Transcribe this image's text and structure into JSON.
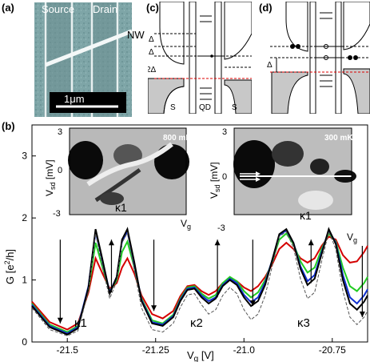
{
  "panels": {
    "a": {
      "label": "(a)",
      "source_label": "Source",
      "drain_label": "Drain",
      "nw_label": "NW",
      "scalebar_label": "1μm"
    },
    "c": {
      "label": "(c)",
      "delta_labels": [
        "Δ",
        "Δ",
        "2Δ"
      ],
      "bottom_labels": [
        "S",
        "QD",
        "S"
      ]
    },
    "d": {
      "label": "(d)",
      "delta_label": "Δ"
    },
    "b": {
      "label": "(b)",
      "inset_left": {
        "temp": "800 mK",
        "ylabel": "V",
        "ylabel_sub": "sd",
        "ylabel_unit": " [mV]",
        "yticks": [
          "3",
          "0",
          "-3"
        ],
        "kappa": "κ1"
      },
      "inset_right": {
        "temp": "300 mK",
        "ylabel": "V",
        "ylabel_sub": "sd",
        "ylabel_unit": " [mV]",
        "yticks": [
          "3",
          "0",
          "-3"
        ],
        "kappa": "κ1"
      },
      "vg_label_left": "V",
      "vg_label_right": "V",
      "vg_sub": "g",
      "kappa_labels": [
        "κ1",
        "κ2",
        "κ3"
      ]
    }
  },
  "chart_data": {
    "type": "line",
    "xlabel": "V_g [V]",
    "ylabel": "G [e²/h]",
    "xlim": [
      -21.6,
      -20.65
    ],
    "ylim": [
      0,
      3.5
    ],
    "xticks": [
      -21.5,
      -21.25,
      -21.0,
      -20.75
    ],
    "xtick_labels": [
      "-21.5",
      "-21.25",
      "-21.0",
      "-20.75"
    ],
    "yticks": [
      0,
      1,
      2,
      3
    ],
    "ytick_labels": [
      "0",
      "1",
      "2",
      "3"
    ],
    "series_colors": [
      "#d40000",
      "#22cc22",
      "#1030d0",
      "#000000",
      "#555555"
    ],
    "series": [
      {
        "x": [
          -21.6,
          -21.55,
          -21.5,
          -21.47,
          -21.44,
          -21.42,
          -21.4,
          -21.38,
          -21.36,
          -21.345,
          -21.33,
          -21.31,
          -21.29,
          -21.26,
          -21.23,
          -21.2,
          -21.18,
          -21.16,
          -21.14,
          -21.12,
          -21.1,
          -21.08,
          -21.06,
          -21.04,
          -21.02,
          -21.0,
          -20.98,
          -20.96,
          -20.94,
          -20.92,
          -20.9,
          -20.88,
          -20.86,
          -20.84,
          -20.82,
          -20.8,
          -20.78,
          -20.76,
          -20.74,
          -20.72,
          -20.7,
          -20.68,
          -20.66,
          -20.65
        ],
        "y": [
          0.65,
          0.32,
          0.2,
          0.3,
          0.8,
          1.35,
          1.1,
          0.86,
          0.95,
          1.2,
          1.35,
          1.1,
          0.75,
          0.45,
          0.38,
          0.5,
          0.74,
          0.9,
          0.92,
          0.82,
          0.76,
          0.82,
          0.95,
          1.02,
          0.98,
          0.88,
          0.82,
          0.9,
          1.05,
          1.25,
          1.5,
          1.6,
          1.5,
          1.35,
          1.28,
          1.35,
          1.55,
          1.7,
          1.65,
          1.4,
          1.28,
          1.3,
          1.45,
          1.55
        ]
      },
      {
        "x": [
          -21.6,
          -21.55,
          -21.5,
          -21.47,
          -21.44,
          -21.42,
          -21.4,
          -21.38,
          -21.36,
          -21.345,
          -21.33,
          -21.31,
          -21.29,
          -21.26,
          -21.23,
          -21.2,
          -21.18,
          -21.16,
          -21.14,
          -21.12,
          -21.1,
          -21.08,
          -21.06,
          -21.04,
          -21.02,
          -21.0,
          -20.98,
          -20.96,
          -20.94,
          -20.92,
          -20.9,
          -20.88,
          -20.86,
          -20.84,
          -20.82,
          -20.8,
          -20.78,
          -20.76,
          -20.74,
          -20.72,
          -20.7,
          -20.68,
          -20.66,
          -20.65
        ],
        "y": [
          0.62,
          0.28,
          0.16,
          0.26,
          0.85,
          1.6,
          1.2,
          0.82,
          1.0,
          1.45,
          1.62,
          1.2,
          0.7,
          0.35,
          0.3,
          0.44,
          0.7,
          0.88,
          0.9,
          0.78,
          0.7,
          0.76,
          0.95,
          1.05,
          0.98,
          0.82,
          0.72,
          0.8,
          1.0,
          1.3,
          1.65,
          1.75,
          1.58,
          1.3,
          1.12,
          1.2,
          1.5,
          1.75,
          1.62,
          1.2,
          0.9,
          0.82,
          0.95,
          1.05
        ]
      },
      {
        "x": [
          -21.6,
          -21.55,
          -21.5,
          -21.47,
          -21.44,
          -21.42,
          -21.4,
          -21.38,
          -21.36,
          -21.345,
          -21.33,
          -21.31,
          -21.29,
          -21.26,
          -21.23,
          -21.2,
          -21.18,
          -21.16,
          -21.14,
          -21.12,
          -21.1,
          -21.08,
          -21.06,
          -21.04,
          -21.02,
          -21.0,
          -20.98,
          -20.96,
          -20.94,
          -20.92,
          -20.9,
          -20.88,
          -20.86,
          -20.84,
          -20.82,
          -20.8,
          -20.78,
          -20.76,
          -20.74,
          -20.72,
          -20.7,
          -20.68,
          -20.66,
          -20.65
        ],
        "y": [
          0.6,
          0.26,
          0.14,
          0.24,
          0.9,
          1.78,
          1.3,
          0.8,
          1.05,
          1.62,
          1.78,
          1.25,
          0.68,
          0.32,
          0.28,
          0.42,
          0.68,
          0.86,
          0.88,
          0.75,
          0.66,
          0.72,
          0.92,
          1.02,
          0.95,
          0.76,
          0.64,
          0.72,
          0.96,
          1.32,
          1.72,
          1.8,
          1.6,
          1.22,
          0.98,
          1.08,
          1.45,
          1.8,
          1.6,
          1.08,
          0.72,
          0.62,
          0.75,
          0.85
        ]
      },
      {
        "x": [
          -21.6,
          -21.55,
          -21.5,
          -21.47,
          -21.44,
          -21.42,
          -21.4,
          -21.38,
          -21.36,
          -21.345,
          -21.33,
          -21.31,
          -21.29,
          -21.26,
          -21.23,
          -21.2,
          -21.18,
          -21.16,
          -21.14,
          -21.12,
          -21.1,
          -21.08,
          -21.06,
          -21.04,
          -21.02,
          -21.0,
          -20.98,
          -20.96,
          -20.94,
          -20.92,
          -20.9,
          -20.88,
          -20.86,
          -20.84,
          -20.82,
          -20.8,
          -20.78,
          -20.76,
          -20.74,
          -20.72,
          -20.7,
          -20.68,
          -20.66,
          -20.65
        ],
        "y": [
          0.58,
          0.24,
          0.12,
          0.22,
          0.88,
          1.82,
          1.32,
          0.78,
          1.05,
          1.65,
          1.82,
          1.28,
          0.66,
          0.3,
          0.26,
          0.4,
          0.66,
          0.84,
          0.86,
          0.72,
          0.62,
          0.7,
          0.9,
          1.0,
          0.92,
          0.72,
          0.58,
          0.66,
          0.92,
          1.32,
          1.74,
          1.82,
          1.6,
          1.18,
          0.92,
          1.02,
          1.42,
          1.82,
          1.58,
          1.0,
          0.62,
          0.52,
          0.65,
          0.75
        ]
      },
      {
        "x": [
          -21.6,
          -21.55,
          -21.5,
          -21.47,
          -21.44,
          -21.42,
          -21.4,
          -21.38,
          -21.36,
          -21.345,
          -21.33,
          -21.31,
          -21.29,
          -21.26,
          -21.23,
          -21.2,
          -21.18,
          -21.16,
          -21.14,
          -21.12,
          -21.1,
          -21.08,
          -21.06,
          -21.04,
          -21.02,
          -21.0,
          -20.98,
          -20.96,
          -20.94,
          -20.92,
          -20.9,
          -20.88,
          -20.86,
          -20.84,
          -20.82,
          -20.8,
          -20.78,
          -20.76,
          -20.74,
          -20.72,
          -20.7,
          -20.68,
          -20.66,
          -20.65
        ],
        "y": [
          0.55,
          0.2,
          0.1,
          0.18,
          0.82,
          1.75,
          1.2,
          0.7,
          0.98,
          1.6,
          1.76,
          1.15,
          0.55,
          0.2,
          0.16,
          0.3,
          0.56,
          0.76,
          0.78,
          0.6,
          0.45,
          0.52,
          0.75,
          0.88,
          0.78,
          0.52,
          0.36,
          0.45,
          0.75,
          1.22,
          1.7,
          1.78,
          1.52,
          1.02,
          0.7,
          0.8,
          1.3,
          1.78,
          1.5,
          0.82,
          0.4,
          0.28,
          0.4,
          0.5
        ]
      }
    ],
    "arrows": [
      {
        "x": -21.52,
        "direction": "down",
        "from": 1.65,
        "to": 0.3
      },
      {
        "x": -21.375,
        "direction": "up",
        "from": 0.8,
        "to": 1.65
      },
      {
        "x": -21.255,
        "direction": "down",
        "from": 1.65,
        "to": 0.5
      },
      {
        "x": -21.075,
        "direction": "up",
        "from": 0.72,
        "to": 1.65
      },
      {
        "x": -20.975,
        "direction": "down",
        "from": 1.65,
        "to": 0.58
      },
      {
        "x": -20.81,
        "direction": "up",
        "from": 0.95,
        "to": 1.65
      },
      {
        "x": -20.665,
        "direction": "down",
        "from": 1.55,
        "to": 0.4
      }
    ]
  }
}
